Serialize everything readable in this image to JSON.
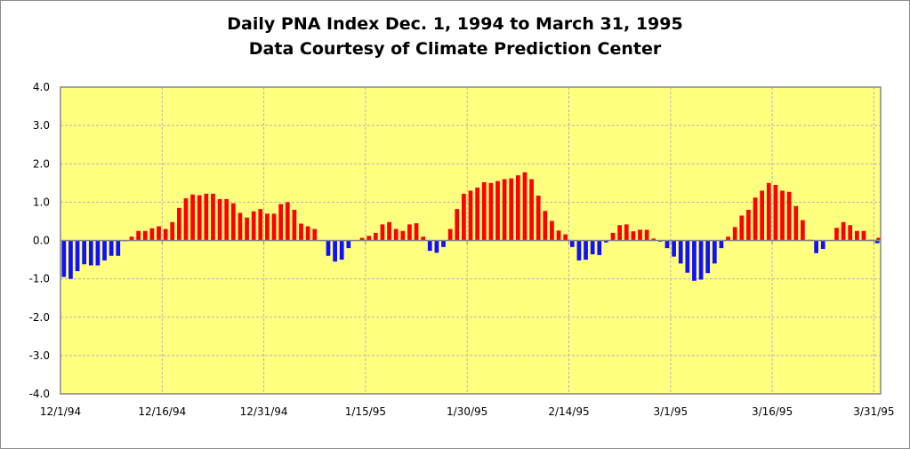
{
  "chart_data": {
    "type": "bar",
    "title": "Daily PNA Index Dec. 1, 1994 to March 31, 1995",
    "subtitle": "Data Courtesy of Climate Prediction Center",
    "xlabel": "",
    "ylabel": "",
    "ylim": [
      -4.0,
      4.0
    ],
    "yticks": [
      "4.0",
      "3.0",
      "2.0",
      "1.0",
      "0.0",
      "-1.0",
      "-2.0",
      "-3.0",
      "-4.0"
    ],
    "xtick_labels": [
      "12/1/94",
      "12/16/94",
      "12/31/94",
      "1/15/95",
      "1/30/95",
      "2/14/95",
      "3/1/95",
      "3/16/95",
      "3/31/95"
    ],
    "x_start": "12/1/94",
    "x_end": "3/31/95",
    "grid": true,
    "positive_color": "#ff0000",
    "negative_color": "#1010ff",
    "plot_background": "#ffff80",
    "values": [
      -0.95,
      -1.0,
      -0.8,
      -0.62,
      -0.65,
      -0.65,
      -0.52,
      -0.4,
      -0.4,
      -0.02,
      0.1,
      0.25,
      0.25,
      0.32,
      0.37,
      0.3,
      0.48,
      0.85,
      1.1,
      1.2,
      1.18,
      1.22,
      1.22,
      1.08,
      1.08,
      0.97,
      0.72,
      0.6,
      0.76,
      0.82,
      0.7,
      0.7,
      0.95,
      1.0,
      0.8,
      0.44,
      0.37,
      0.3,
      0.0,
      -0.4,
      -0.55,
      -0.5,
      -0.2,
      0.0,
      0.07,
      0.12,
      0.2,
      0.42,
      0.48,
      0.3,
      0.25,
      0.42,
      0.45,
      0.1,
      -0.27,
      -0.32,
      -0.17,
      0.3,
      0.82,
      1.22,
      1.3,
      1.38,
      1.52,
      1.5,
      1.55,
      1.6,
      1.62,
      1.7,
      1.78,
      1.6,
      1.17,
      0.77,
      0.51,
      0.26,
      0.16,
      -0.17,
      -0.52,
      -0.5,
      -0.36,
      -0.38,
      -0.05,
      0.2,
      0.4,
      0.42,
      0.24,
      0.28,
      0.28,
      0.05,
      -0.03,
      -0.2,
      -0.42,
      -0.6,
      -0.84,
      -1.05,
      -1.02,
      -0.85,
      -0.6,
      -0.2,
      0.1,
      0.35,
      0.65,
      0.8,
      1.12,
      1.3,
      1.5,
      1.45,
      1.3,
      1.27,
      0.9,
      0.53,
      0.02,
      -0.33,
      -0.22,
      0.0,
      0.33,
      0.48,
      0.4,
      0.25,
      0.25,
      0.02,
      -0.07,
      0.07
    ]
  }
}
